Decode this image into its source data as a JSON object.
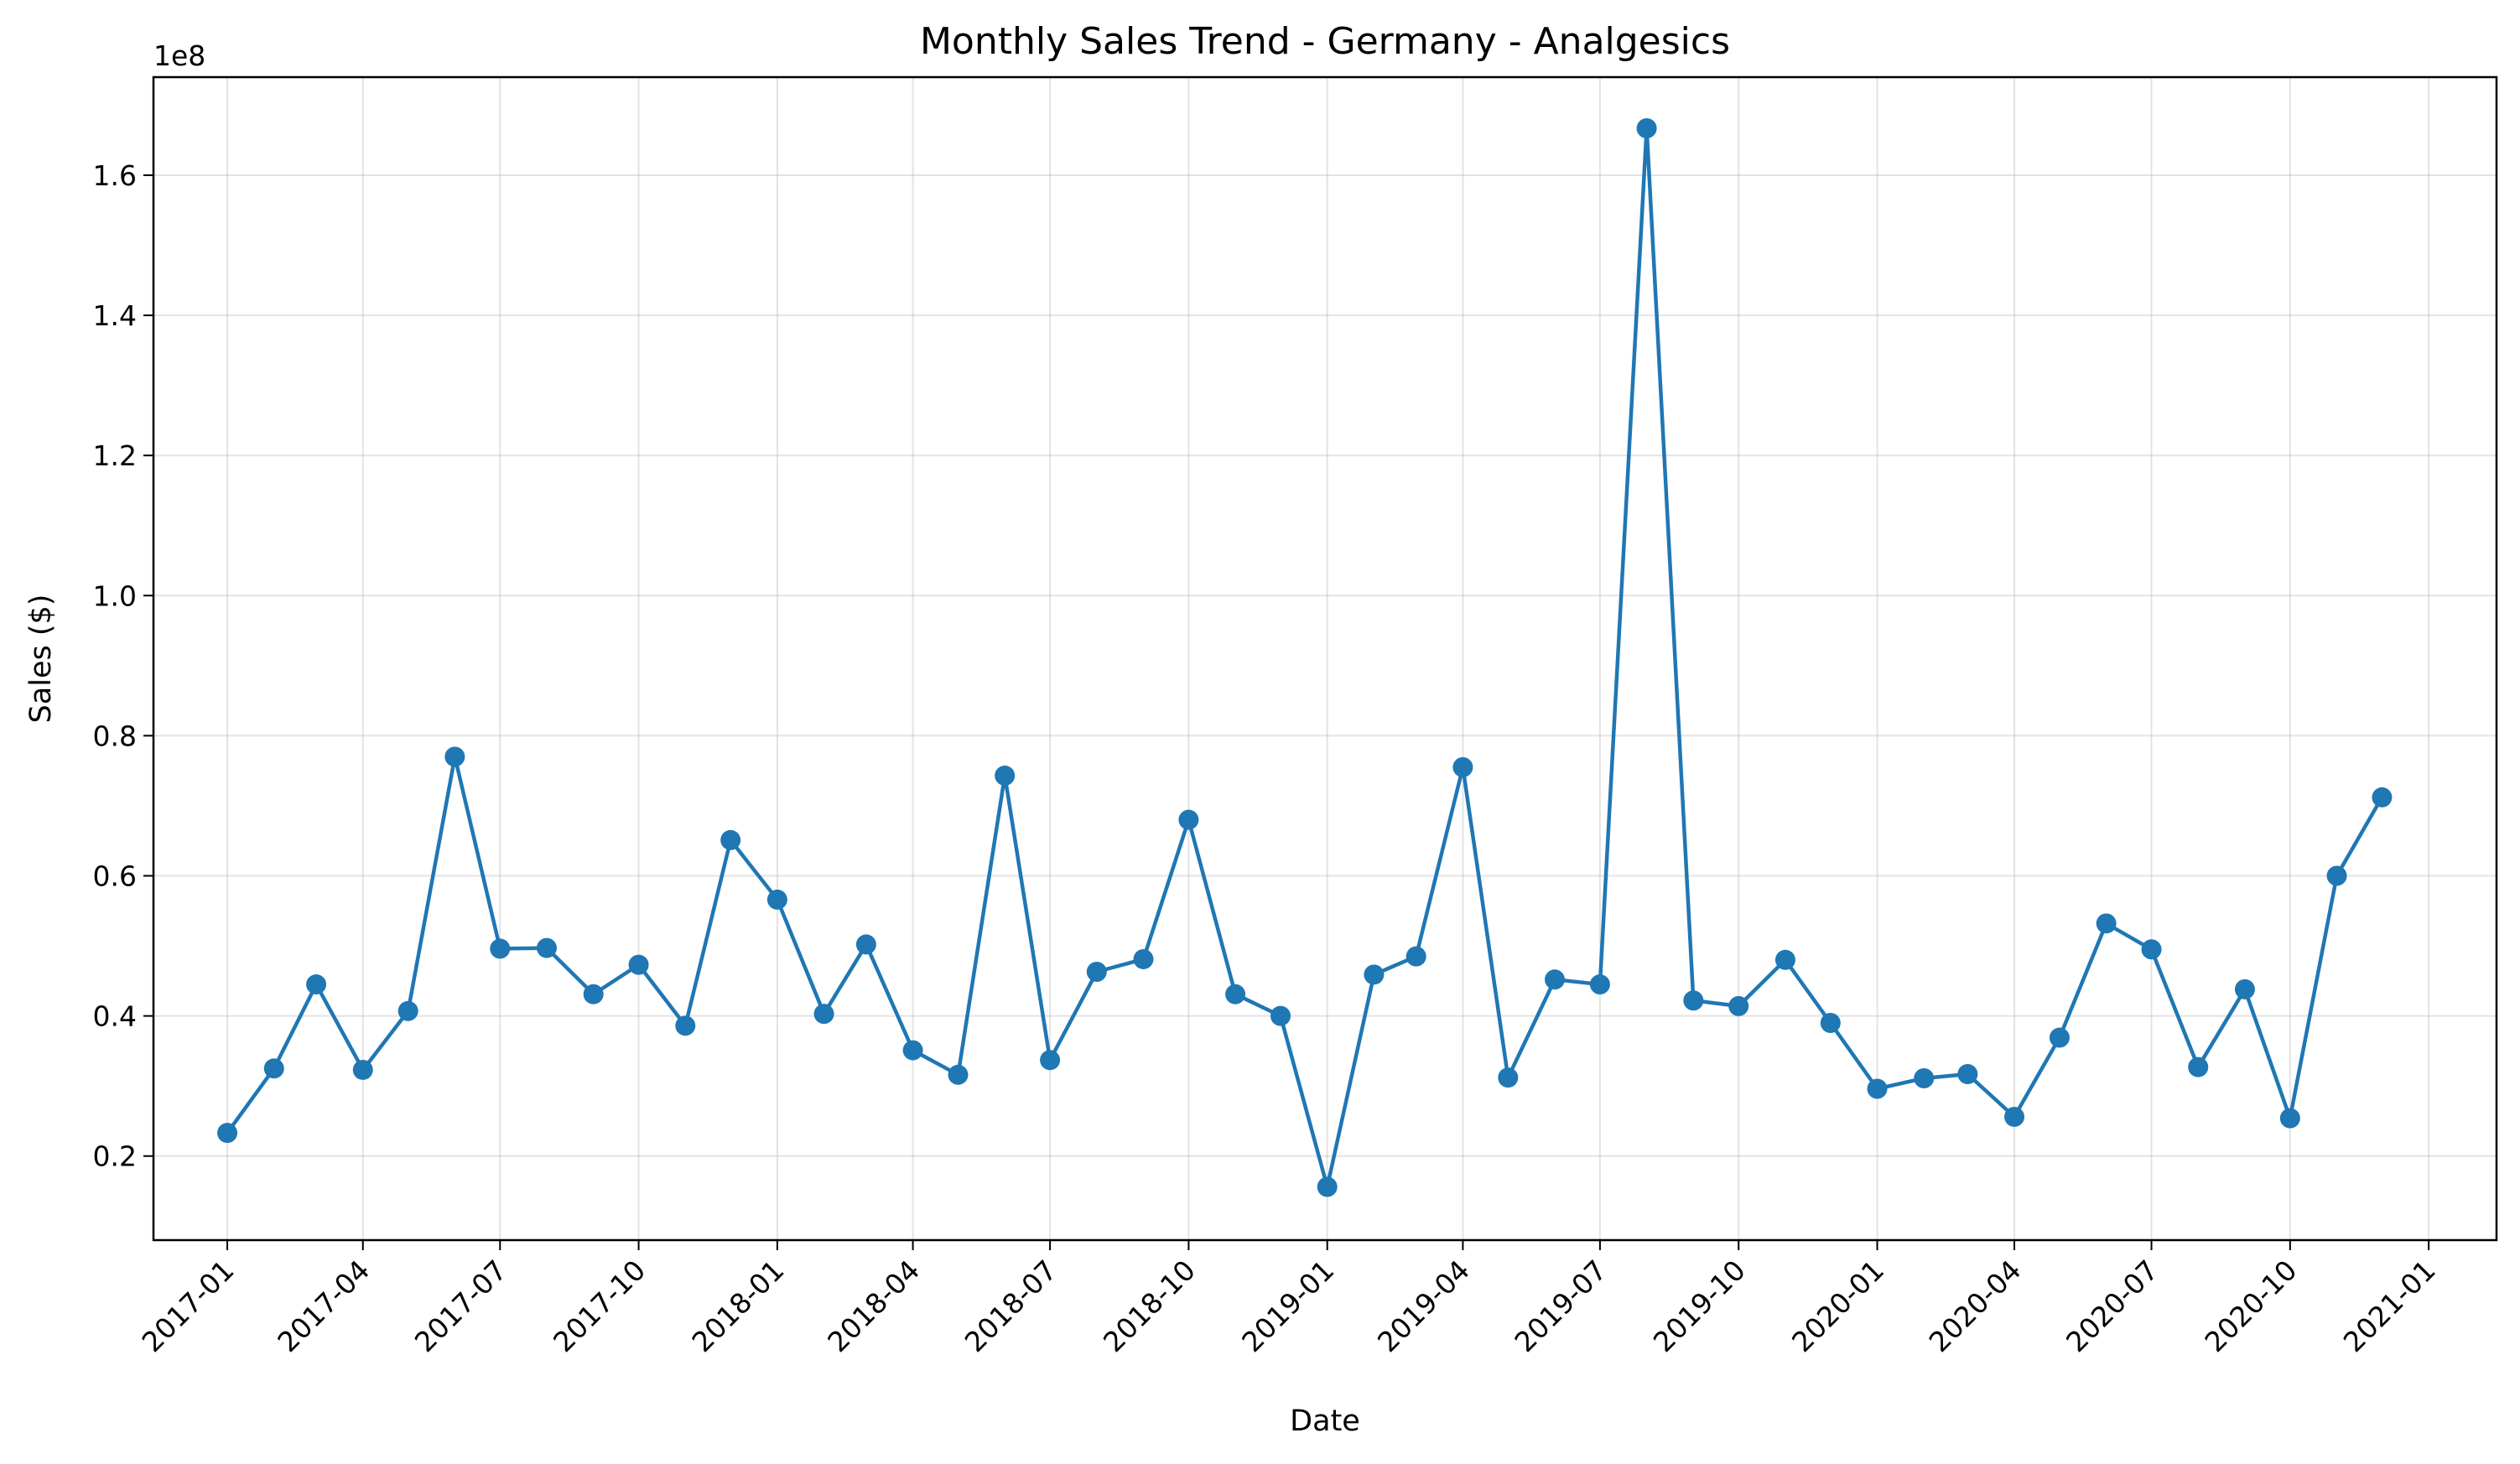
{
  "chart_data": {
    "type": "line",
    "title": "Monthly Sales Trend - Germany - Analgesics",
    "xlabel": "Date",
    "ylabel": "Sales ($)",
    "y_offset_label": "1e8",
    "y_scale": 100000000,
    "ylim": [
      0.08,
      1.74
    ],
    "yticks": [
      0.2,
      0.4,
      0.6,
      0.8,
      1.0,
      1.2,
      1.4,
      1.6
    ],
    "ytick_labels": [
      "0.2",
      "0.4",
      "0.6",
      "0.8",
      "1.0",
      "1.2",
      "1.4",
      "1.6"
    ],
    "xlim": [
      "2016-11-13",
      "2021-02-15"
    ],
    "xticks": [
      "2017-01-01",
      "2017-04-01",
      "2017-07-01",
      "2017-10-01",
      "2018-01-01",
      "2018-04-01",
      "2018-07-01",
      "2018-10-01",
      "2019-01-01",
      "2019-04-01",
      "2019-07-01",
      "2019-10-01",
      "2020-01-01",
      "2020-04-01",
      "2020-07-01",
      "2020-10-01",
      "2021-01-01"
    ],
    "xtick_labels": [
      "2017-01",
      "2017-04",
      "2017-07",
      "2017-10",
      "2018-01",
      "2018-04",
      "2018-07",
      "2018-10",
      "2019-01",
      "2019-04",
      "2019-07",
      "2019-10",
      "2020-01",
      "2020-04",
      "2020-07",
      "2020-10",
      "2021-01"
    ],
    "grid": true,
    "marker": "circle",
    "line_color": "#1f77b4",
    "series": [
      {
        "x": [
          "2017-01-01",
          "2017-02-01",
          "2017-03-01",
          "2017-04-01",
          "2017-05-01",
          "2017-06-01",
          "2017-07-01",
          "2017-08-01",
          "2017-09-01",
          "2017-10-01",
          "2017-11-01",
          "2017-12-01",
          "2018-01-01",
          "2018-02-01",
          "2018-03-01",
          "2018-04-01",
          "2018-05-01",
          "2018-06-01",
          "2018-07-01",
          "2018-08-01",
          "2018-09-01",
          "2018-10-01",
          "2018-11-01",
          "2018-12-01",
          "2019-01-01",
          "2019-02-01",
          "2019-03-01",
          "2019-04-01",
          "2019-05-01",
          "2019-06-01",
          "2019-07-01",
          "2019-08-01",
          "2019-09-01",
          "2019-10-01",
          "2019-11-01",
          "2019-12-01",
          "2020-01-01",
          "2020-02-01",
          "2020-03-01",
          "2020-04-01",
          "2020-05-01",
          "2020-06-01",
          "2020-07-01",
          "2020-08-01",
          "2020-09-01",
          "2020-10-01",
          "2020-11-01",
          "2020-12-01"
        ],
        "values": [
          0.233,
          0.325,
          0.445,
          0.323,
          0.407,
          0.77,
          0.496,
          0.497,
          0.431,
          0.473,
          0.386,
          0.651,
          0.566,
          0.403,
          0.502,
          0.351,
          0.316,
          0.743,
          0.337,
          0.463,
          0.481,
          0.68,
          0.431,
          0.4,
          0.156,
          0.459,
          0.485,
          0.755,
          0.312,
          0.452,
          0.445,
          1.667,
          0.422,
          0.414,
          0.48,
          0.39,
          0.296,
          0.311,
          0.317,
          0.256,
          0.369,
          0.532,
          0.495,
          0.327,
          0.438,
          0.254,
          0.6,
          0.712
        ]
      }
    ]
  }
}
